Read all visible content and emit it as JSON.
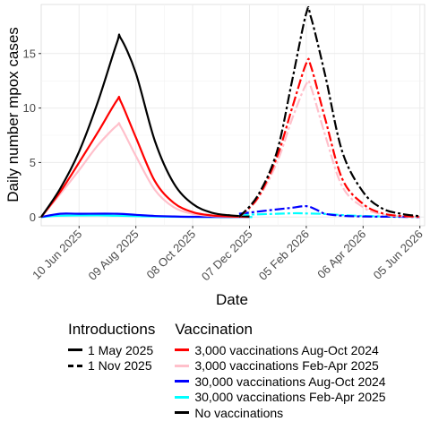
{
  "chart_data": {
    "type": "line",
    "xlabel": "Date",
    "ylabel": "Daily number mpox cases",
    "x_axis": {
      "type": "date",
      "range": [
        "2025-05-01",
        "2026-06-10"
      ],
      "ticks": [
        "2025-06-10",
        "2025-08-09",
        "2025-10-08",
        "2025-12-07",
        "2026-02-05",
        "2026-04-06",
        "2026-06-05"
      ],
      "tick_labels": [
        "10 Jun 2025",
        "09 Aug 2025",
        "08 Oct 2025",
        "07 Dec 2025",
        "05 Feb 2026",
        "06 Apr 2026",
        "05 Jun 2026"
      ],
      "tick_label_rotation_deg": -45
    },
    "y_axis": {
      "range": [
        -0.8,
        19.5
      ],
      "ticks": [
        0,
        5,
        10,
        15
      ],
      "tick_labels": [
        "0",
        "5",
        "10",
        "15"
      ]
    },
    "grid": true,
    "legend_position": "bottom",
    "legends": [
      {
        "title": "Introductions",
        "items": [
          {
            "label": "1 May 2025",
            "linetype": "solid",
            "color": "#000000"
          },
          {
            "label": "1 Nov 2025",
            "linetype": "dashed",
            "color": "#000000"
          }
        ]
      },
      {
        "title": "Vaccination",
        "items": [
          {
            "label": "3,000 vaccinations Aug-Oct 2024",
            "color": "#ff0000"
          },
          {
            "label": "3,000 vaccinations Feb-Apr 2025",
            "color": "#ffc0cb"
          },
          {
            "label": "30,000 vaccinations Aug-Oct 2024",
            "color": "#0000ff"
          },
          {
            "label": "30,000 vaccinations Feb-Apr 2025",
            "color": "#00ffff"
          },
          {
            "label": "No vaccinations",
            "color": "#000000"
          }
        ]
      }
    ],
    "series": [
      {
        "introduction": "1 May 2025",
        "vaccination": "No vaccinations",
        "color": "#000000",
        "linetype": "solid",
        "points": [
          [
            "2025-05-01",
            0
          ],
          [
            "2025-05-21",
            2.6
          ],
          [
            "2025-06-10",
            6.0
          ],
          [
            "2025-06-30",
            10.6
          ],
          [
            "2025-07-20",
            16.0
          ],
          [
            "2025-07-24",
            16.4
          ],
          [
            "2025-08-09",
            13.2
          ],
          [
            "2025-08-29",
            7.0
          ],
          [
            "2025-09-18",
            3.1
          ],
          [
            "2025-10-08",
            1.2
          ],
          [
            "2025-10-28",
            0.4
          ],
          [
            "2025-11-17",
            0.15
          ],
          [
            "2025-12-07",
            0.05
          ]
        ]
      },
      {
        "introduction": "1 May 2025",
        "vaccination": "3,000 vaccinations Aug-Oct 2024",
        "color": "#ff0000",
        "linetype": "solid",
        "points": [
          [
            "2025-05-01",
            0
          ],
          [
            "2025-05-21",
            2.3
          ],
          [
            "2025-06-10",
            5.0
          ],
          [
            "2025-06-30",
            7.8
          ],
          [
            "2025-07-20",
            10.7
          ],
          [
            "2025-07-24",
            10.6
          ],
          [
            "2025-08-09",
            7.3
          ],
          [
            "2025-08-29",
            3.3
          ],
          [
            "2025-09-18",
            1.3
          ],
          [
            "2025-10-08",
            0.45
          ],
          [
            "2025-10-28",
            0.15
          ],
          [
            "2025-11-17",
            0.05
          ],
          [
            "2025-12-07",
            0.02
          ]
        ]
      },
      {
        "introduction": "1 May 2025",
        "vaccination": "3,000 vaccinations Feb-Apr 2025",
        "color": "#ffc0cb",
        "linetype": "solid",
        "points": [
          [
            "2025-05-01",
            0
          ],
          [
            "2025-05-21",
            2.1
          ],
          [
            "2025-06-10",
            4.3
          ],
          [
            "2025-06-30",
            6.6
          ],
          [
            "2025-07-20",
            8.4
          ],
          [
            "2025-07-24",
            8.3
          ],
          [
            "2025-08-09",
            5.6
          ],
          [
            "2025-08-29",
            2.5
          ],
          [
            "2025-09-18",
            0.9
          ],
          [
            "2025-10-08",
            0.3
          ],
          [
            "2025-10-28",
            0.1
          ],
          [
            "2025-11-17",
            0.03
          ],
          [
            "2025-12-07",
            0.01
          ]
        ]
      },
      {
        "introduction": "1 May 2025",
        "vaccination": "30,000 vaccinations Aug-Oct 2024",
        "color": "#0000ff",
        "linetype": "solid",
        "points": [
          [
            "2025-05-01",
            0
          ],
          [
            "2025-05-21",
            0.3
          ],
          [
            "2025-06-10",
            0.3
          ],
          [
            "2025-07-20",
            0.3
          ],
          [
            "2025-08-09",
            0.2
          ],
          [
            "2025-08-29",
            0.1
          ],
          [
            "2025-09-18",
            0.05
          ],
          [
            "2025-10-08",
            0.02
          ],
          [
            "2025-12-07",
            0.0
          ]
        ]
      },
      {
        "introduction": "1 May 2025",
        "vaccination": "30,000 vaccinations Feb-Apr 2025",
        "color": "#00ffff",
        "linetype": "solid",
        "points": [
          [
            "2025-05-01",
            0
          ],
          [
            "2025-05-21",
            0.12
          ],
          [
            "2025-06-30",
            0.15
          ],
          [
            "2025-07-20",
            0.12
          ],
          [
            "2025-08-29",
            0.05
          ],
          [
            "2025-10-08",
            0.01
          ],
          [
            "2025-12-10",
            0.0
          ]
        ]
      },
      {
        "introduction": "1 Nov 2025",
        "vaccination": "No vaccinations",
        "color": "#000000",
        "linetype": "dashed",
        "points": [
          [
            "2025-11-26",
            0
          ],
          [
            "2025-12-16",
            2.0
          ],
          [
            "2026-01-05",
            6.0
          ],
          [
            "2026-01-21",
            12.5
          ],
          [
            "2026-02-05",
            18.7
          ],
          [
            "2026-02-10",
            18.3
          ],
          [
            "2026-02-25",
            13.0
          ],
          [
            "2026-03-15",
            6.0
          ],
          [
            "2026-04-06",
            2.3
          ],
          [
            "2026-04-26",
            0.8
          ],
          [
            "2026-05-16",
            0.3
          ],
          [
            "2026-06-05",
            0.08
          ]
        ]
      },
      {
        "introduction": "1 Nov 2025",
        "vaccination": "3,000 vaccinations Aug-Oct 2024",
        "color": "#ff0000",
        "linetype": "dashed",
        "points": [
          [
            "2025-11-26",
            0
          ],
          [
            "2025-12-16",
            1.8
          ],
          [
            "2026-01-05",
            5.5
          ],
          [
            "2026-01-21",
            10.0
          ],
          [
            "2026-02-05",
            14.1
          ],
          [
            "2026-02-10",
            13.8
          ],
          [
            "2026-02-25",
            9.0
          ],
          [
            "2026-03-15",
            3.5
          ],
          [
            "2026-04-06",
            1.2
          ],
          [
            "2026-04-26",
            0.35
          ],
          [
            "2026-05-16",
            0.1
          ],
          [
            "2026-06-05",
            0.02
          ]
        ]
      },
      {
        "introduction": "1 Nov 2025",
        "vaccination": "3,000 vaccinations Feb-Apr 2025",
        "color": "#ffc0cb",
        "linetype": "dashed",
        "points": [
          [
            "2025-11-26",
            0
          ],
          [
            "2025-12-16",
            1.7
          ],
          [
            "2026-01-05",
            5.0
          ],
          [
            "2026-01-21",
            9.0
          ],
          [
            "2026-02-05",
            12.2
          ],
          [
            "2026-02-10",
            11.9
          ],
          [
            "2026-02-25",
            7.5
          ],
          [
            "2026-03-15",
            2.8
          ],
          [
            "2026-04-06",
            0.9
          ],
          [
            "2026-04-26",
            0.25
          ],
          [
            "2026-05-16",
            0.07
          ],
          [
            "2026-06-05",
            0.01
          ]
        ]
      },
      {
        "introduction": "1 Nov 2025",
        "vaccination": "30,000 vaccinations Aug-Oct 2024",
        "color": "#0000ff",
        "linetype": "dashed",
        "points": [
          [
            "2025-11-26",
            0.3
          ],
          [
            "2025-12-16",
            0.5
          ],
          [
            "2026-01-05",
            0.7
          ],
          [
            "2026-01-21",
            0.85
          ],
          [
            "2026-02-05",
            1.0
          ],
          [
            "2026-02-15",
            0.7
          ],
          [
            "2026-02-25",
            0.3
          ],
          [
            "2026-03-15",
            0.12
          ],
          [
            "2026-04-06",
            0.05
          ],
          [
            "2026-05-16",
            0.02
          ],
          [
            "2026-06-05",
            0.0
          ]
        ]
      },
      {
        "introduction": "1 Nov 2025",
        "vaccination": "30,000 vaccinations Feb-Apr 2025",
        "color": "#00ffff",
        "linetype": "dashed",
        "points": [
          [
            "2025-11-26",
            0.2
          ],
          [
            "2025-12-16",
            0.25
          ],
          [
            "2026-01-05",
            0.3
          ],
          [
            "2026-01-25",
            0.35
          ],
          [
            "2026-02-05",
            0.33
          ],
          [
            "2026-02-25",
            0.28
          ],
          [
            "2026-03-15",
            0.18
          ],
          [
            "2026-04-06",
            0.1
          ],
          [
            "2026-05-16",
            0.03
          ],
          [
            "2026-06-05",
            0.01
          ]
        ]
      }
    ]
  }
}
